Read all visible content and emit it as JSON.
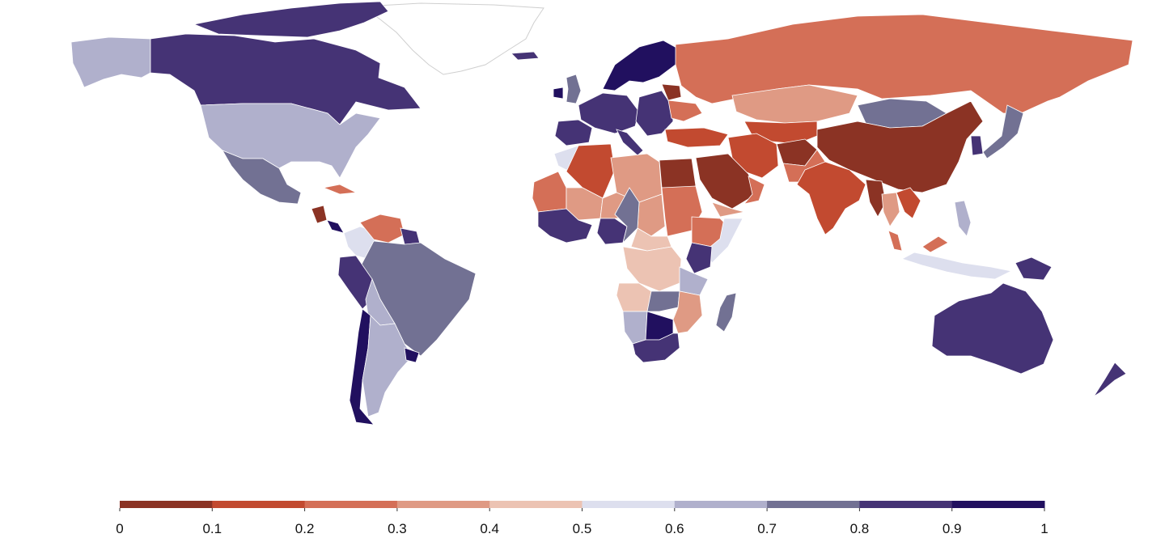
{
  "map": {
    "type": "choropleth",
    "projection": "equirectangular",
    "scale": {
      "min": 0,
      "max": 1,
      "step": 0.1
    },
    "colors": [
      "#8b3324",
      "#c24a30",
      "#d46f57",
      "#df9a84",
      "#ecc3b3",
      "#dddfee",
      "#b0b0cc",
      "#727193",
      "#453375",
      "#21105f"
    ],
    "no_data_color": "#ffffff",
    "regions": [
      {
        "name": "Alaska",
        "value": 0.65
      },
      {
        "name": "Canada",
        "value": 0.85
      },
      {
        "name": "Arctic Islands",
        "value": 0.85
      },
      {
        "name": "Greenland",
        "value": null
      },
      {
        "name": "United States",
        "value": 0.65
      },
      {
        "name": "Mexico",
        "value": 0.75
      },
      {
        "name": "Cuba",
        "value": 0.25
      },
      {
        "name": "Nicaragua",
        "value": 0.05
      },
      {
        "name": "Panama",
        "value": 0.95
      },
      {
        "name": "Colombia",
        "value": 0.55
      },
      {
        "name": "Venezuela",
        "value": 0.25
      },
      {
        "name": "Guyana",
        "value": 0.85
      },
      {
        "name": "Brazil",
        "value": 0.75
      },
      {
        "name": "Peru",
        "value": 0.85
      },
      {
        "name": "Bolivia",
        "value": 0.65
      },
      {
        "name": "Chile",
        "value": 0.95
      },
      {
        "name": "Argentina",
        "value": 0.65
      },
      {
        "name": "Uruguay",
        "value": 0.95
      },
      {
        "name": "Iceland",
        "value": 0.85
      },
      {
        "name": "United Kingdom",
        "value": 0.75
      },
      {
        "name": "Ireland",
        "value": 0.95
      },
      {
        "name": "Scandinavia",
        "value": 0.95
      },
      {
        "name": "Western Europe",
        "value": 0.85
      },
      {
        "name": "Spain",
        "value": 0.85
      },
      {
        "name": "Italy",
        "value": 0.85
      },
      {
        "name": "Eastern Europe",
        "value": 0.85
      },
      {
        "name": "Belarus",
        "value": 0.05
      },
      {
        "name": "Ukraine",
        "value": 0.25
      },
      {
        "name": "Russia",
        "value": 0.25
      },
      {
        "name": "Kazakhstan",
        "value": 0.35
      },
      {
        "name": "Central Asia",
        "value": 0.15
      },
      {
        "name": "Mongolia",
        "value": 0.75
      },
      {
        "name": "China",
        "value": 0.05
      },
      {
        "name": "Korea",
        "value": 0.85
      },
      {
        "name": "Japan",
        "value": 0.75
      },
      {
        "name": "Turkey",
        "value": 0.15
      },
      {
        "name": "Iran",
        "value": 0.15
      },
      {
        "name": "Afghanistan",
        "value": 0.05
      },
      {
        "name": "Pakistan",
        "value": 0.25
      },
      {
        "name": "Saudi Arabia",
        "value": 0.05
      },
      {
        "name": "Yemen",
        "value": 0.35
      },
      {
        "name": "Oman",
        "value": 0.25
      },
      {
        "name": "India",
        "value": 0.15
      },
      {
        "name": "Myanmar",
        "value": 0.05
      },
      {
        "name": "Thailand",
        "value": 0.35
      },
      {
        "name": "Vietnam",
        "value": 0.15
      },
      {
        "name": "Malaysia",
        "value": 0.25
      },
      {
        "name": "Indonesia",
        "value": 0.55
      },
      {
        "name": "Philippines",
        "value": 0.65
      },
      {
        "name": "Papua New Guinea",
        "value": 0.85
      },
      {
        "name": "Australia",
        "value": 0.85
      },
      {
        "name": "New Zealand",
        "value": 0.85
      },
      {
        "name": "Morocco",
        "value": 0.55
      },
      {
        "name": "Algeria",
        "value": 0.15
      },
      {
        "name": "Libya",
        "value": 0.35
      },
      {
        "name": "Egypt",
        "value": 0.05
      },
      {
        "name": "Mauritania",
        "value": 0.25
      },
      {
        "name": "Mali",
        "value": 0.35
      },
      {
        "name": "Niger",
        "value": 0.35
      },
      {
        "name": "Chad",
        "value": 0.35
      },
      {
        "name": "Sudan",
        "value": 0.25
      },
      {
        "name": "Ethiopia",
        "value": 0.25
      },
      {
        "name": "Somalia",
        "value": 0.55
      },
      {
        "name": "West Africa",
        "value": 0.85
      },
      {
        "name": "Nigeria",
        "value": 0.85
      },
      {
        "name": "Cameroon",
        "value": 0.75
      },
      {
        "name": "Central Africa",
        "value": 0.45
      },
      {
        "name": "DR Congo",
        "value": 0.45
      },
      {
        "name": "Kenya",
        "value": 0.85
      },
      {
        "name": "Tanzania",
        "value": 0.65
      },
      {
        "name": "Angola",
        "value": 0.45
      },
      {
        "name": "Zambia",
        "value": 0.75
      },
      {
        "name": "Mozambique",
        "value": 0.35
      },
      {
        "name": "Namibia",
        "value": 0.65
      },
      {
        "name": "Botswana",
        "value": 0.95
      },
      {
        "name": "South Africa",
        "value": 0.85
      },
      {
        "name": "Madagascar",
        "value": 0.75
      }
    ]
  },
  "legend": {
    "tick_labels": [
      "0",
      "0.1",
      "0.2",
      "0.3",
      "0.4",
      "0.5",
      "0.6",
      "0.7",
      "0.8",
      "0.9",
      "1"
    ]
  }
}
